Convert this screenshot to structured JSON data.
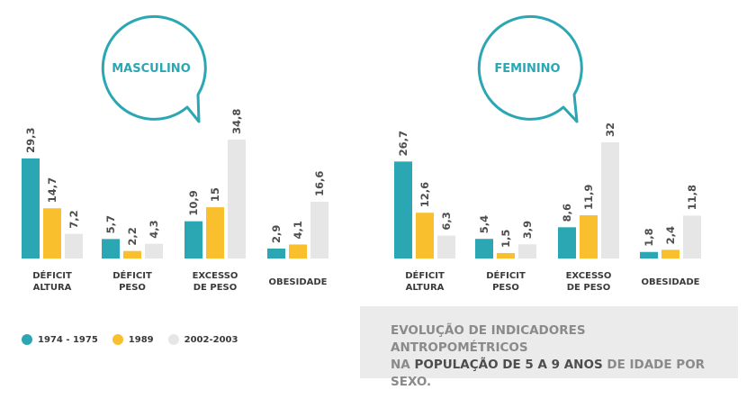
{
  "chart_data": [
    {
      "type": "bar",
      "title": "MASCULINO",
      "categories": [
        [
          "DÉFICIT",
          "ALTURA"
        ],
        [
          "DÉFICIT",
          "PESO"
        ],
        [
          "EXCESSO",
          "DE PESO"
        ],
        [
          "OBESIDADE"
        ]
      ],
      "series": [
        {
          "name": "1974 - 1975",
          "values": [
            29.3,
            5.7,
            10.9,
            2.9
          ],
          "labels": [
            "29,3",
            "5,7",
            "10,9",
            "2,9"
          ]
        },
        {
          "name": "1989",
          "values": [
            14.7,
            2.2,
            15,
            4.1
          ],
          "labels": [
            "14,7",
            "2,2",
            "15",
            "4,1"
          ]
        },
        {
          "name": "2002-2003",
          "values": [
            7.2,
            4.3,
            34.8,
            16.6
          ],
          "labels": [
            "7,2",
            "4,3",
            "34,8",
            "16,6"
          ]
        }
      ]
    },
    {
      "type": "bar",
      "title": "FEMININO",
      "categories": [
        [
          "DÉFICIT",
          "ALTURA"
        ],
        [
          "DÉFICIT",
          "PESO"
        ],
        [
          "EXCESSO",
          "DE PESO"
        ],
        [
          "OBESIDADE"
        ]
      ],
      "series": [
        {
          "name": "1974 - 1975",
          "values": [
            26.7,
            5.4,
            8.6,
            1.8
          ],
          "labels": [
            "26,7",
            "5,4",
            "8,6",
            "1,8"
          ]
        },
        {
          "name": "1989",
          "values": [
            12.6,
            1.5,
            11.9,
            2.4
          ],
          "labels": [
            "12,6",
            "1,5",
            "11,9",
            "2,4"
          ]
        },
        {
          "name": "2002-2003",
          "values": [
            6.3,
            3.9,
            32,
            11.8
          ],
          "labels": [
            "6,3",
            "3,9",
            "32",
            "11,8"
          ]
        }
      ]
    }
  ],
  "colors": {
    "1974 - 1975": "#2ba7b3",
    "1989": "#f9bf2d",
    "2002-2003": "#e6e6e6",
    "title": "#2ba7b3"
  },
  "legend": [
    {
      "label": "1974 - 1975",
      "color": "#2ba7b3"
    },
    {
      "label": "1989",
      "color": "#f9bf2d"
    },
    {
      "label": "2002-2003",
      "color": "#e6e6e6"
    }
  ],
  "caption": {
    "line1": "EVOLUÇÃO DE INDICADORES ANTROPOMÉTRICOS",
    "line2_pre": "NA ",
    "line2_highlight": "POPULAÇÃO DE 5 A 9 ANOS",
    "line2_post": " DE IDADE POR SEXO."
  }
}
